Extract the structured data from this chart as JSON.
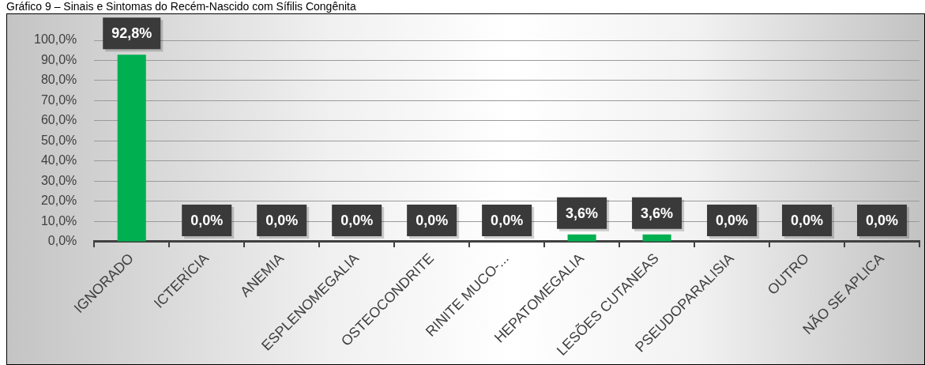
{
  "chart_data": {
    "type": "bar",
    "title": "Gráfico 9 – Sinais e Sintomas do Recém-Nascido com Sífilis Congênita",
    "categories": [
      "IGNORADO",
      "ICTERÍCIA",
      "ANEMIA",
      "ESPLENOMEGALIA",
      "OSTEOCONDRITE",
      "RINITE MUCO-...",
      "HEPATOMEGALIA",
      "LESÕES CUTANEAS",
      "PSEUDOPARALISIA",
      "OUTRO",
      "NÃO SE APLICA"
    ],
    "values": [
      92.8,
      0,
      0,
      0,
      0,
      0,
      3.6,
      3.6,
      0,
      0,
      0
    ],
    "value_labels": [
      "92,8%",
      "0,0%",
      "0,0%",
      "0,0%",
      "0,0%",
      "0,0%",
      "3,6%",
      "3,6%",
      "0,0%",
      "0,0%",
      "0,0%"
    ],
    "color": "#00b050",
    "ylim": [
      0,
      100
    ],
    "yticks": [
      {
        "value": 0,
        "label": "0,0%"
      },
      {
        "value": 10,
        "label": "10,0%"
      },
      {
        "value": 20,
        "label": "20,0%"
      },
      {
        "value": 30,
        "label": "30,0%"
      },
      {
        "value": 40,
        "label": "40,0%"
      },
      {
        "value": 50,
        "label": "50,0%"
      },
      {
        "value": 60,
        "label": "60,0%"
      },
      {
        "value": 70,
        "label": "70,0%"
      },
      {
        "value": 80,
        "label": "80,0%"
      },
      {
        "value": 90,
        "label": "90,0%"
      },
      {
        "value": 100,
        "label": "100,0%"
      }
    ],
    "grid": "y"
  }
}
